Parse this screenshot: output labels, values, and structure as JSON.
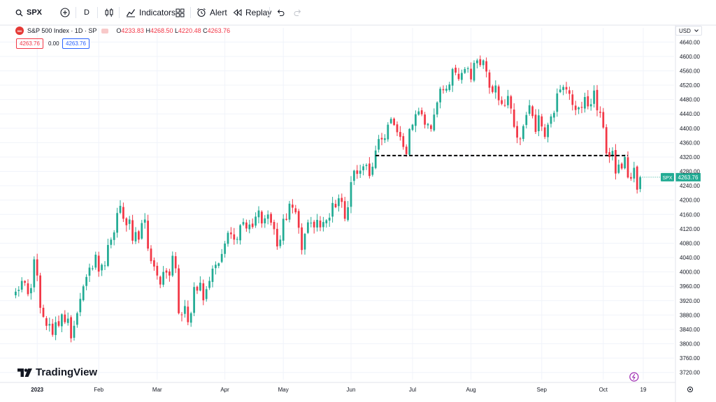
{
  "toolbar": {
    "symbol": "SPX",
    "interval": "D",
    "indicators_label": "Indicators",
    "alert_label": "Alert",
    "replay_label": "Replay"
  },
  "legend": {
    "title": "S&P 500 Index · 1D · SP",
    "open_key": "O",
    "open": "4233.83",
    "high_key": "H",
    "high": "4268.50",
    "low_key": "L",
    "low": "4220.48",
    "close_key": "C",
    "close": "4263.76",
    "sell_price": "4263.76",
    "spread": "0.00",
    "buy_price": "4263.76"
  },
  "currency": "USD",
  "brand": "TradingView",
  "colors": {
    "up": "#22ab94",
    "down": "#f23645",
    "grid": "#f0f3fa",
    "support_line": "#000000"
  },
  "chart_data": {
    "type": "candlestick",
    "symbol_badge": "SPX",
    "last_price": 4263.76,
    "ylim": [
      3700,
      4660
    ],
    "y_ticks": [
      "4640.00",
      "4600.00",
      "4560.00",
      "4520.00",
      "4480.00",
      "4440.00",
      "4400.00",
      "4360.00",
      "4320.00",
      "4280.00",
      "4240.00",
      "4200.00",
      "4160.00",
      "4120.00",
      "4080.00",
      "4040.00",
      "4000.00",
      "3960.00",
      "3920.00",
      "3880.00",
      "3840.00",
      "3800.00",
      "3760.00",
      "3720.00"
    ],
    "x_ticks": [
      {
        "label": "2023",
        "index": 7,
        "bold": true
      },
      {
        "label": "Feb",
        "index": 27
      },
      {
        "label": "Mar",
        "index": 46
      },
      {
        "label": "Apr",
        "index": 68
      },
      {
        "label": "May",
        "index": 87
      },
      {
        "label": "Jun",
        "index": 109
      },
      {
        "label": "Jul",
        "index": 129
      },
      {
        "label": "Aug",
        "index": 148
      },
      {
        "label": "Sep",
        "index": 171
      },
      {
        "label": "Oct",
        "index": 191
      },
      {
        "label": "19",
        "index": 204
      }
    ],
    "x_range": [
      -1,
      214
    ],
    "close_series": [
      3945,
      3950,
      3975,
      3970,
      3938,
      3955,
      4035,
      3990,
      3900,
      3875,
      3850,
      3855,
      3825,
      3860,
      3850,
      3882,
      3860,
      3870,
      3815,
      3850,
      3885,
      3925,
      3960,
      3986,
      4012,
      4010,
      4048,
      4001,
      4020,
      4018,
      4075,
      4090,
      4110,
      4164,
      4184,
      4148,
      4130,
      4146,
      4087,
      4111,
      4090,
      4136,
      4146,
      4065,
      4030,
      4015,
      3990,
      3965,
      4000,
      3998,
      3990,
      4045,
      4010,
      3885,
      3880,
      3905,
      3860,
      3885,
      3958,
      3948,
      3970,
      3921,
      3952,
      3975,
      4009,
      4020,
      4024,
      4050,
      4079,
      4109,
      4105,
      4090,
      4092,
      4130,
      4139,
      4121,
      4132,
      4125,
      4154,
      4171,
      4135,
      4149,
      4160,
      4137,
      4119,
      4071,
      4090,
      4148,
      4145,
      4190,
      4179,
      4166,
      4123,
      4061,
      4106,
      4138,
      4137,
      4124,
      4145,
      4124,
      4139,
      4144,
      4151,
      4192,
      4180,
      4205,
      4195,
      4148,
      4180,
      4250,
      4282,
      4273,
      4282,
      4294,
      4298,
      4267,
      4293,
      4338,
      4370,
      4369,
      4372,
      4410,
      4426,
      4409,
      4389,
      4376,
      4348,
      4328,
      4398,
      4410,
      4439,
      4447,
      4439,
      4410,
      4412,
      4398,
      4438,
      4472,
      4510,
      4506,
      4510,
      4522,
      4565,
      4555,
      4537,
      4554,
      4565,
      4567,
      4536,
      4582,
      4589,
      4576,
      4589,
      4558,
      4513,
      4501,
      4519,
      4478,
      4468,
      4464,
      4490,
      4455,
      4404,
      4374,
      4370,
      4406,
      4437,
      4464,
      4434,
      4390,
      4436,
      4405,
      4376,
      4410,
      4433,
      4443,
      4497,
      4508,
      4515,
      4508,
      4496,
      4465,
      4451,
      4458,
      4457,
      4487,
      4461,
      4467,
      4505,
      4450,
      4443,
      4402,
      4330,
      4320,
      4337,
      4274,
      4299,
      4288,
      4320,
      4263,
      4260,
      4290,
      4229,
      4264
    ],
    "support_level": 4324,
    "support_from_index": 117,
    "support_to_index": 199
  }
}
